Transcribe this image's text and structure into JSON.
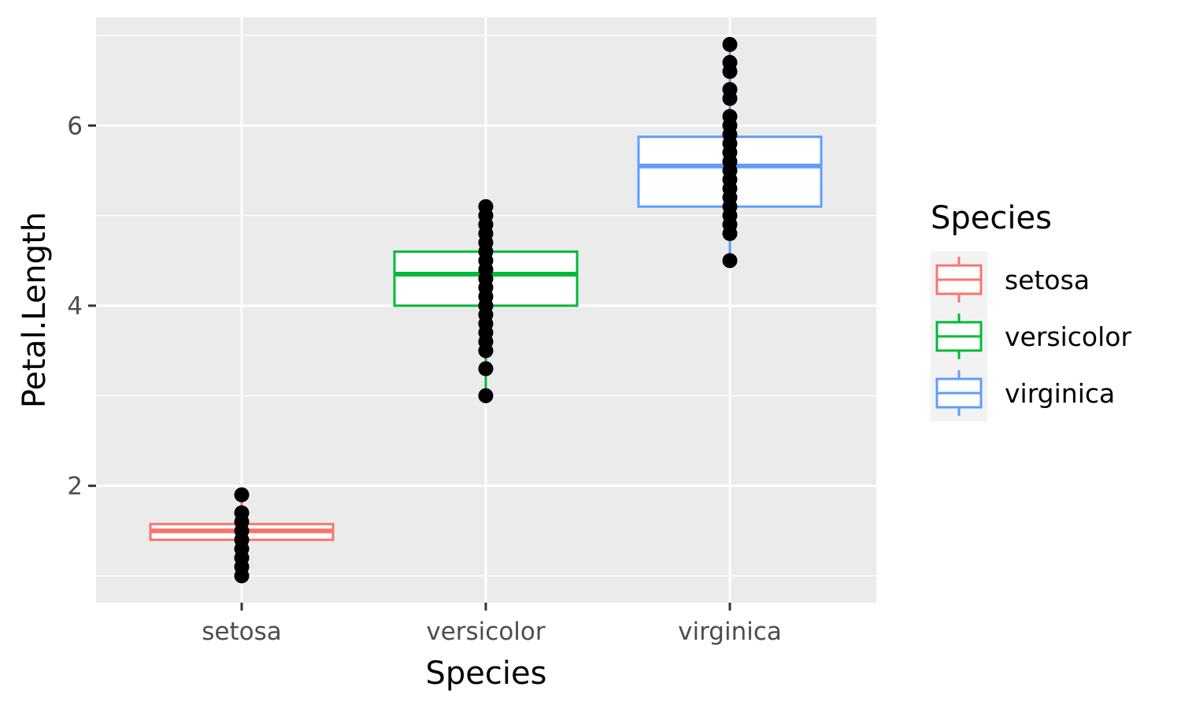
{
  "chart_data": {
    "type": "box",
    "title": "",
    "xlabel": "Species",
    "ylabel": "Petal.Length",
    "ylim": [
      0.7,
      7.2
    ],
    "yticks": [
      2,
      4,
      6
    ],
    "yticks_labels": [
      "2",
      "4",
      "6"
    ],
    "minor_yticks": [
      1,
      3,
      5,
      7
    ],
    "grid": true,
    "legend": {
      "title": "Species",
      "position": "right"
    },
    "categories": [
      "setosa",
      "versicolor",
      "virginica"
    ],
    "series": [
      {
        "name": "setosa",
        "color": "#F8766D",
        "box": {
          "min": 1.0,
          "q1": 1.4,
          "median": 1.5,
          "q3": 1.575,
          "max": 1.9
        },
        "points": [
          1.0,
          1.1,
          1.2,
          1.3,
          1.4,
          1.5,
          1.6,
          1.7,
          1.9
        ]
      },
      {
        "name": "versicolor",
        "color": "#00BA38",
        "box": {
          "min": 3.0,
          "q1": 4.0,
          "median": 4.35,
          "q3": 4.6,
          "max": 5.1
        },
        "points": [
          3.0,
          3.3,
          3.5,
          3.6,
          3.7,
          3.8,
          3.9,
          4.0,
          4.1,
          4.2,
          4.3,
          4.4,
          4.5,
          4.6,
          4.7,
          4.8,
          4.9,
          5.0,
          5.1
        ]
      },
      {
        "name": "virginica",
        "color": "#619CFF",
        "box": {
          "min": 4.5,
          "q1": 5.1,
          "median": 5.55,
          "q3": 5.875,
          "max": 6.9
        },
        "points": [
          4.5,
          4.8,
          4.9,
          5.0,
          5.1,
          5.2,
          5.3,
          5.4,
          5.5,
          5.6,
          5.7,
          5.8,
          5.9,
          6.0,
          6.1,
          6.3,
          6.4,
          6.6,
          6.7,
          6.9
        ]
      }
    ]
  }
}
